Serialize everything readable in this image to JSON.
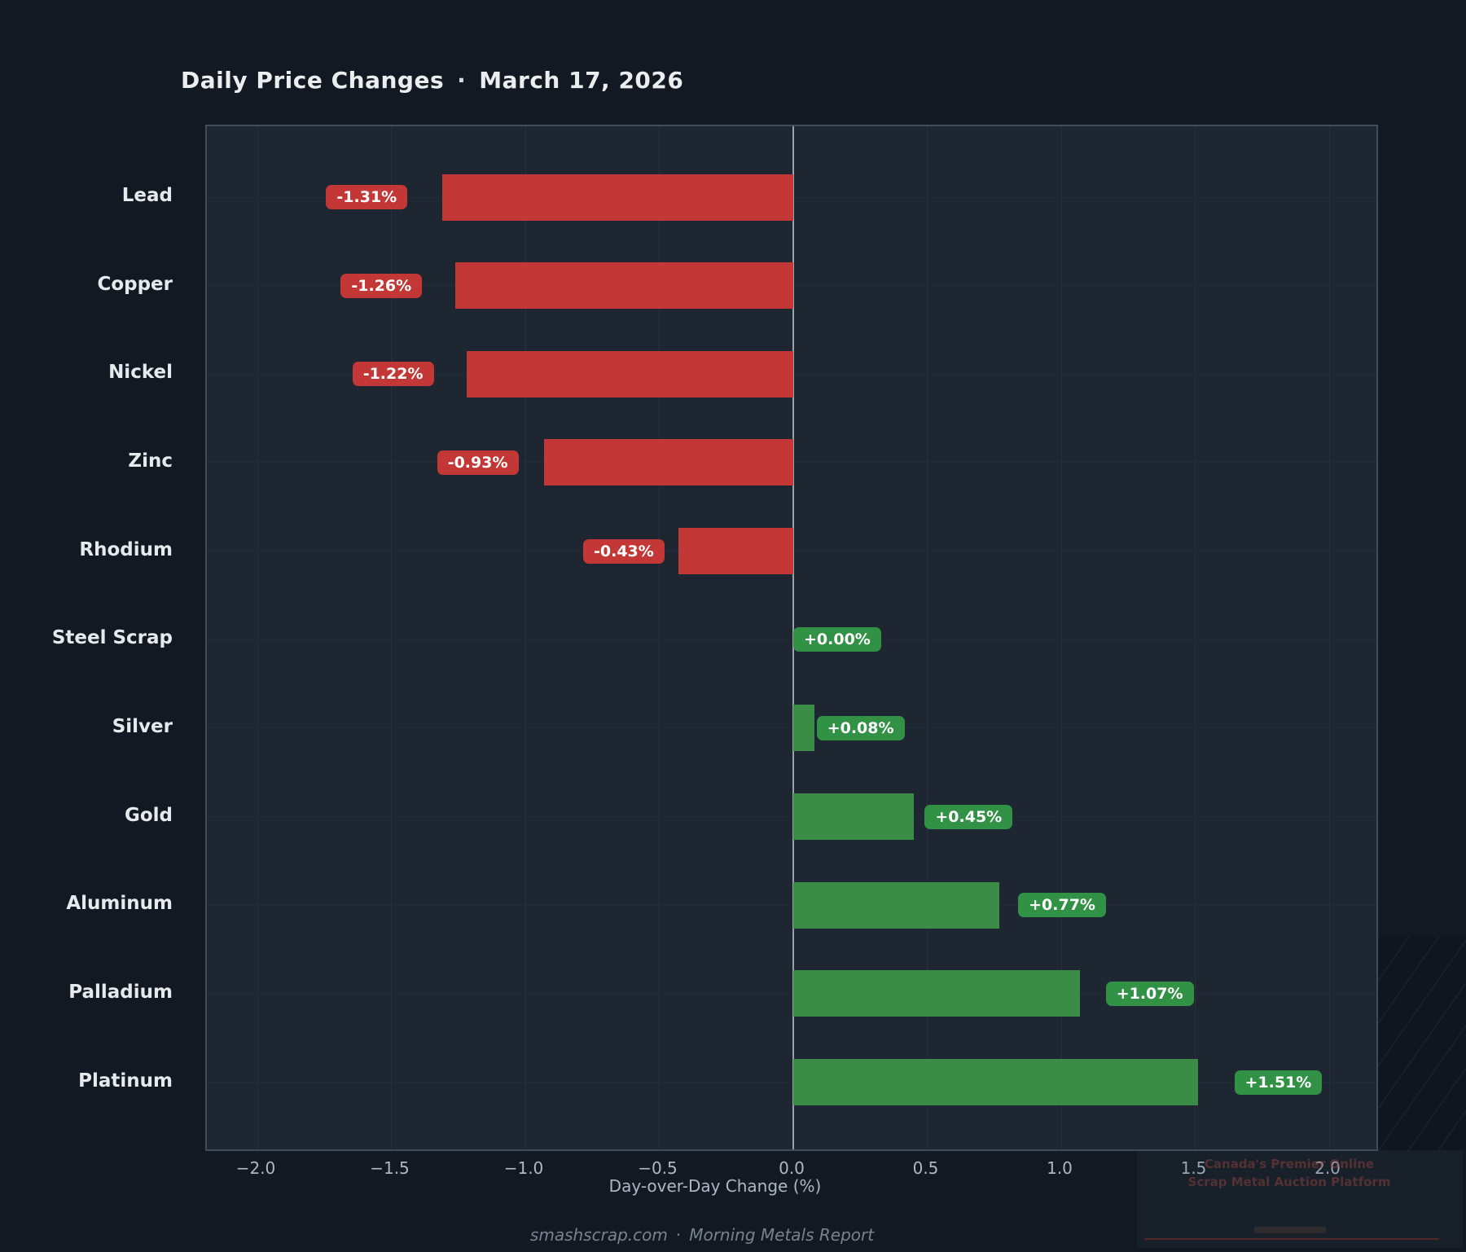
{
  "header": {
    "title": "Daily Price Changes",
    "separator": "·",
    "date": "March 17, 2026"
  },
  "chart_data": {
    "type": "bar",
    "orientation": "horizontal",
    "categories": [
      "Lead",
      "Copper",
      "Nickel",
      "Zinc",
      "Rhodium",
      "Steel Scrap",
      "Silver",
      "Gold",
      "Aluminum",
      "Palladium",
      "Platinum"
    ],
    "values": [
      -1.31,
      -1.26,
      -1.22,
      -0.93,
      -0.43,
      0.0,
      0.08,
      0.45,
      0.77,
      1.07,
      1.51
    ],
    "value_labels": [
      "-1.31%",
      "-1.26%",
      "-1.22%",
      "-0.93%",
      "-0.43%",
      "+0.00%",
      "+0.08%",
      "+0.45%",
      "+0.77%",
      "+1.07%",
      "+1.51%"
    ],
    "xlabel": "Day-over-Day Change (%)",
    "xlim": [
      -2.19,
      2.19
    ],
    "xticks": [
      -2.0,
      -1.5,
      -1.0,
      -0.5,
      0.0,
      0.5,
      1.0,
      1.5,
      2.0
    ],
    "xtick_labels": [
      "−2.0",
      "−1.5",
      "−1.0",
      "−0.5",
      "0.0",
      "0.5",
      "1.0",
      "1.5",
      "2.0"
    ],
    "grid": true,
    "zero_line": true,
    "legend": "none",
    "colors": {
      "negative_bar": "#c43737",
      "positive_bar": "#3a8c46",
      "negative_badge": "#c43737",
      "positive_badge": "#319145",
      "plot_background": "#1d2631",
      "page_background": "#121922",
      "zero_line": "#98a2ac"
    }
  },
  "footer": {
    "site": "smashscrap.com",
    "separator": "·",
    "report": "Morning Metals Report"
  },
  "watermark": {
    "line1": "Canada's Premier Online",
    "line2": "Scrap Metal Auction Platform"
  }
}
